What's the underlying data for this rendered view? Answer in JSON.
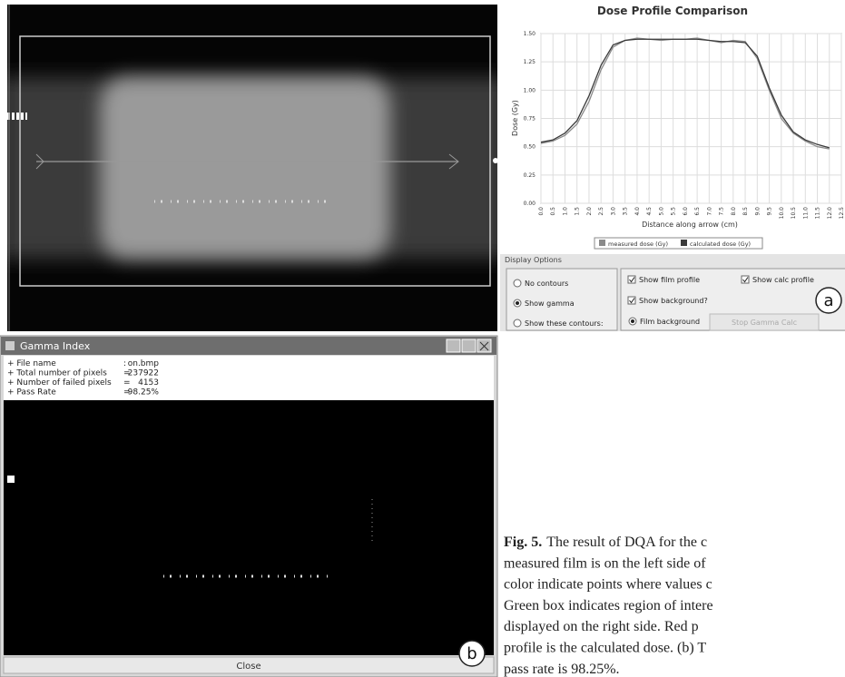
{
  "chart_data": {
    "type": "line",
    "title": "Dose Profile Comparison",
    "x_label": "Distance along arrow (cm)",
    "y_label": "Dose (Gy)",
    "x": [
      0,
      0.5,
      1,
      1.5,
      2,
      2.5,
      3,
      3.5,
      4,
      4.5,
      5,
      5.5,
      6,
      6.5,
      7,
      7.5,
      8,
      8.5,
      9,
      9.5,
      10,
      10.5,
      11,
      11.5,
      12
    ],
    "series": [
      {
        "name": "measured dose (Gy)",
        "color": "#8a8a8a",
        "values": [
          0.53,
          0.55,
          0.6,
          0.7,
          0.9,
          1.18,
          1.38,
          1.44,
          1.46,
          1.45,
          1.44,
          1.45,
          1.45,
          1.46,
          1.44,
          1.42,
          1.44,
          1.43,
          1.28,
          1.0,
          0.75,
          0.62,
          0.55,
          0.5,
          0.48
        ]
      },
      {
        "name": "calculated dose (Gy)",
        "color": "#3a3a3a",
        "values": [
          0.54,
          0.56,
          0.62,
          0.73,
          0.95,
          1.22,
          1.4,
          1.44,
          1.45,
          1.45,
          1.45,
          1.45,
          1.45,
          1.45,
          1.44,
          1.43,
          1.43,
          1.42,
          1.3,
          1.02,
          0.78,
          0.63,
          0.56,
          0.52,
          0.49
        ]
      }
    ],
    "xlim": [
      0,
      12.5
    ],
    "xticks": [
      {
        "value": 0,
        "label": "0.0"
      },
      {
        "value": 0.5,
        "label": "0.5"
      },
      {
        "value": 1,
        "label": "1.0"
      },
      {
        "value": 1.5,
        "label": "1.5"
      },
      {
        "value": 2,
        "label": "2.0"
      },
      {
        "value": 2.5,
        "label": "2.5"
      },
      {
        "value": 3,
        "label": "3.0"
      },
      {
        "value": 3.5,
        "label": "3.5"
      },
      {
        "value": 4,
        "label": "4.0"
      },
      {
        "value": 4.5,
        "label": "4.5"
      },
      {
        "value": 5,
        "label": "5.0"
      },
      {
        "value": 5.5,
        "label": "5.5"
      },
      {
        "value": 6,
        "label": "6.0"
      },
      {
        "value": 6.5,
        "label": "6.5"
      },
      {
        "value": 7,
        "label": "7.0"
      },
      {
        "value": 7.5,
        "label": "7.5"
      },
      {
        "value": 8,
        "label": "8.0"
      },
      {
        "value": 8.5,
        "label": "8.5"
      },
      {
        "value": 9,
        "label": "9.0"
      },
      {
        "value": 9.5,
        "label": "9.5"
      },
      {
        "value": 10,
        "label": "10.0"
      },
      {
        "value": 10.5,
        "label": "10.5"
      },
      {
        "value": 11,
        "label": "11.0"
      },
      {
        "value": 11.5,
        "label": "11.5"
      },
      {
        "value": 12,
        "label": "12.0"
      },
      {
        "value": 12.5,
        "label": "12.5"
      }
    ],
    "ylim": [
      0,
      1.5
    ],
    "yticks": [
      {
        "value": 0,
        "label": "0.00"
      },
      {
        "value": 0.25,
        "label": "0.25"
      },
      {
        "value": 0.5,
        "label": "0.50"
      },
      {
        "value": 0.75,
        "label": "0.75"
      },
      {
        "value": 1,
        "label": "1.00"
      },
      {
        "value": 1.25,
        "label": "1.25"
      },
      {
        "value": 1.5,
        "label": "1.50"
      }
    ],
    "grid": true
  },
  "display_options": {
    "title": "Display Options",
    "radios": [
      {
        "label": "No contours",
        "checked": false
      },
      {
        "label": "Show gamma",
        "checked": true
      },
      {
        "label": "Show these contours:",
        "checked": false
      }
    ],
    "checkboxes": [
      {
        "label": "Show film profile",
        "checked": true
      },
      {
        "label": "Show calc profile",
        "checked": true
      },
      {
        "label": "Show background?",
        "checked": true
      }
    ],
    "background_radio": {
      "label": "Film background",
      "checked": true
    },
    "button": "Stop Gamma Calc"
  },
  "panel_labels": [
    "a",
    "b"
  ],
  "gamma_window": {
    "title": "Gamma Index",
    "info": [
      [
        "+ File name",
        ":",
        "on.bmp"
      ],
      [
        "+ Total number of pixels",
        "=",
        "237922"
      ],
      [
        "+ Number of failed pixels",
        "=",
        "4153"
      ],
      [
        "+ Pass Rate",
        "=",
        "98.25%"
      ]
    ],
    "button": "Close"
  },
  "caption": {
    "label": "Fig. 5.",
    "lines": [
      "The result of DQA for the c",
      "measured film is on the left side of",
      "color indicate points where values c",
      "Green box indicates region of intere",
      "displayed on the right side. Red p",
      "profile is the calculated dose. (b) T",
      "pass rate is 98.25%."
    ]
  }
}
